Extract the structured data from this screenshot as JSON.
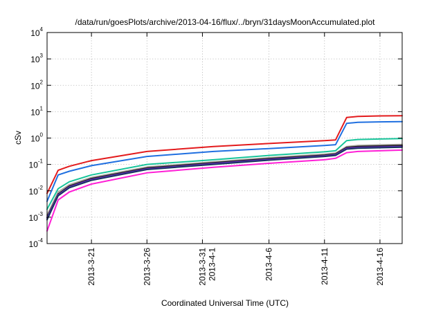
{
  "chart_data": {
    "type": "line",
    "title": "/data/run/goesPlots/archive/2013-04-16/flux/../bryn/31daysMoonAccumulated.plot",
    "xlabel": "Coordinated Universal Time (UTC)",
    "ylabel": "cSv",
    "y_scale": "log",
    "ylim": [
      0.0001,
      10000
    ],
    "y_ticks": [
      {
        "base": "10",
        "exp": "-4",
        "value": 0.0001
      },
      {
        "base": "10",
        "exp": "-3",
        "value": 0.001
      },
      {
        "base": "10",
        "exp": "-2",
        "value": 0.01
      },
      {
        "base": "10",
        "exp": "-1",
        "value": 0.1
      },
      {
        "base": "10",
        "exp": "0",
        "value": 1
      },
      {
        "base": "10",
        "exp": "1",
        "value": 10
      },
      {
        "base": "10",
        "exp": "2",
        "value": 100
      },
      {
        "base": "10",
        "exp": "3",
        "value": 1000
      },
      {
        "base": "10",
        "exp": "4",
        "value": 10000
      }
    ],
    "xlim": [
      "2013-03-17",
      "2013-04-18"
    ],
    "x_ticks": [
      {
        "label": "2013-3-21",
        "date": "2013-03-21"
      },
      {
        "label": "2013-3-26",
        "date": "2013-03-26"
      },
      {
        "label": "2013-3-31",
        "label2": "2013-4-1",
        "date": "2013-03-31"
      },
      {
        "label": "2013-4-6",
        "date": "2013-04-06"
      },
      {
        "label": "2013-4-11",
        "date": "2013-04-11"
      },
      {
        "label": "2013-4-16",
        "date": "2013-04-16"
      }
    ],
    "grid": true,
    "series": [
      {
        "color": "#e31a1c",
        "x": [
          "2013-03-17",
          "2013-03-18",
          "2013-03-19",
          "2013-03-21",
          "2013-03-26",
          "2013-04-01",
          "2013-04-06",
          "2013-04-11",
          "2013-04-12",
          "2013-04-13",
          "2013-04-14",
          "2013-04-16",
          "2013-04-18"
        ],
        "values": [
          0.008,
          0.06,
          0.085,
          0.14,
          0.31,
          0.48,
          0.62,
          0.8,
          0.85,
          6.0,
          6.6,
          6.9,
          7.0
        ]
      },
      {
        "color": "#1f6fe0",
        "x": [
          "2013-03-17",
          "2013-03-18",
          "2013-03-19",
          "2013-03-21",
          "2013-03-26",
          "2013-04-01",
          "2013-04-06",
          "2013-04-11",
          "2013-04-12",
          "2013-04-13",
          "2013-04-14",
          "2013-04-16",
          "2013-04-18"
        ],
        "values": [
          0.004,
          0.04,
          0.055,
          0.09,
          0.2,
          0.31,
          0.4,
          0.52,
          0.56,
          3.6,
          3.95,
          4.1,
          4.2
        ]
      },
      {
        "color": "#17c49a",
        "x": [
          "2013-03-17",
          "2013-03-18",
          "2013-03-19",
          "2013-03-21",
          "2013-03-26",
          "2013-04-01",
          "2013-04-06",
          "2013-04-11",
          "2013-04-12",
          "2013-04-13",
          "2013-04-14",
          "2013-04-16",
          "2013-04-18"
        ],
        "values": [
          0.002,
          0.012,
          0.022,
          0.04,
          0.1,
          0.15,
          0.22,
          0.3,
          0.33,
          0.8,
          0.88,
          0.92,
          0.95
        ]
      },
      {
        "color": "#a8a49c",
        "x": [
          "2013-03-17",
          "2013-03-18",
          "2013-03-19",
          "2013-03-21",
          "2013-03-26",
          "2013-04-01",
          "2013-04-06",
          "2013-04-11",
          "2013-04-12",
          "2013-04-13",
          "2013-04-14",
          "2013-04-16",
          "2013-04-18"
        ],
        "values": [
          0.0012,
          0.009,
          0.017,
          0.032,
          0.08,
          0.125,
          0.18,
          0.245,
          0.27,
          0.48,
          0.52,
          0.55,
          0.57
        ]
      },
      {
        "color": "#1a1a1a",
        "x": [
          "2013-03-17",
          "2013-03-18",
          "2013-03-19",
          "2013-03-21",
          "2013-03-26",
          "2013-04-01",
          "2013-04-06",
          "2013-04-11",
          "2013-04-12",
          "2013-04-13",
          "2013-04-14",
          "2013-04-16",
          "2013-04-18"
        ],
        "values": [
          0.001,
          0.0075,
          0.015,
          0.029,
          0.073,
          0.115,
          0.165,
          0.225,
          0.25,
          0.44,
          0.48,
          0.5,
          0.52
        ]
      },
      {
        "color": "#6b2fc4",
        "x": [
          "2013-03-17",
          "2013-03-18",
          "2013-03-19",
          "2013-03-21",
          "2013-03-26",
          "2013-04-01",
          "2013-04-06",
          "2013-04-11",
          "2013-04-12",
          "2013-04-13",
          "2013-04-14",
          "2013-04-16",
          "2013-04-18"
        ],
        "values": [
          0.0009,
          0.007,
          0.014,
          0.027,
          0.068,
          0.108,
          0.155,
          0.21,
          0.235,
          0.41,
          0.44,
          0.46,
          0.48
        ]
      },
      {
        "color": "#17345f",
        "x": [
          "2013-03-17",
          "2013-03-18",
          "2013-03-19",
          "2013-03-21",
          "2013-03-26",
          "2013-04-01",
          "2013-04-06",
          "2013-04-11",
          "2013-04-12",
          "2013-04-13",
          "2013-04-14",
          "2013-04-16",
          "2013-04-18"
        ],
        "values": [
          0.0008,
          0.0065,
          0.013,
          0.025,
          0.064,
          0.1,
          0.145,
          0.2,
          0.22,
          0.38,
          0.41,
          0.43,
          0.45
        ]
      },
      {
        "color": "#ff1fd6",
        "x": [
          "2013-03-17",
          "2013-03-18",
          "2013-03-19",
          "2013-03-21",
          "2013-03-26",
          "2013-04-01",
          "2013-04-06",
          "2013-04-11",
          "2013-04-12",
          "2013-04-13",
          "2013-04-14",
          "2013-04-16",
          "2013-04-18"
        ],
        "values": [
          0.0003,
          0.0045,
          0.009,
          0.018,
          0.048,
          0.078,
          0.11,
          0.15,
          0.17,
          0.28,
          0.31,
          0.33,
          0.35
        ]
      }
    ]
  }
}
